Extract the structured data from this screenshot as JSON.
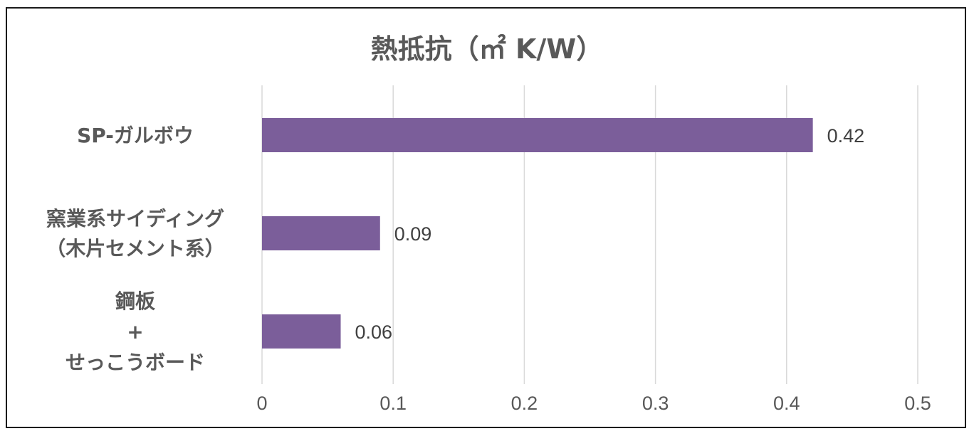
{
  "chart_data": {
    "type": "bar",
    "orientation": "horizontal",
    "title": "熱抵抗（㎡ K/W）",
    "categories": [
      [
        "SP-ガルボウ"
      ],
      [
        "窯業系サイディング",
        "（木片セメント系）"
      ],
      [
        "鋼板",
        "+",
        "せっこうボード"
      ]
    ],
    "values": [
      0.42,
      0.09,
      0.06
    ],
    "data_labels": [
      "0.42",
      "0.09",
      "0.06"
    ],
    "x_ticks": [
      "0",
      "0.1",
      "0.2",
      "0.3",
      "0.4",
      "0.5"
    ],
    "xlim": [
      0,
      0.5
    ],
    "grid": true,
    "bar_color": "#7b5e9a",
    "xlabel": "",
    "ylabel": ""
  }
}
